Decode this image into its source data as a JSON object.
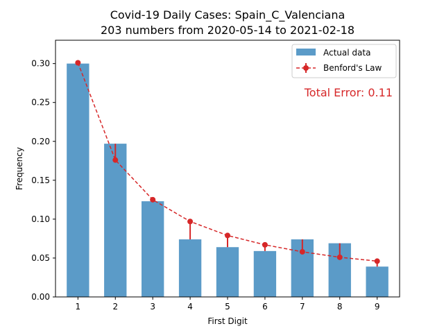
{
  "chart_data": {
    "type": "bar",
    "title": "Covid-19 Daily Cases: Spain_C_Valenciana",
    "subtitle": "203 numbers from 2020-05-14 to 2021-02-18",
    "xlabel": "First Digit",
    "ylabel": "Frequency",
    "categories": [
      "1",
      "2",
      "3",
      "4",
      "5",
      "6",
      "7",
      "8",
      "9"
    ],
    "ylim": [
      0,
      0.33
    ],
    "yticks": [
      "0.00",
      "0.05",
      "0.10",
      "0.15",
      "0.20",
      "0.25",
      "0.30"
    ],
    "series": [
      {
        "name": "Actual data",
        "type": "bar",
        "color": "#5b9bc8",
        "values": [
          0.3,
          0.197,
          0.123,
          0.074,
          0.064,
          0.059,
          0.074,
          0.069,
          0.039
        ]
      },
      {
        "name": "Benford's Law",
        "type": "line",
        "style": "dashed",
        "marker": "circle",
        "color": "#d62728",
        "values": [
          0.301,
          0.176,
          0.125,
          0.097,
          0.079,
          0.067,
          0.058,
          0.051,
          0.046
        ]
      }
    ],
    "annotation": {
      "text": "Total Error: 0.11",
      "color": "#d62728"
    },
    "legend_position": "top-right",
    "grid": false
  }
}
